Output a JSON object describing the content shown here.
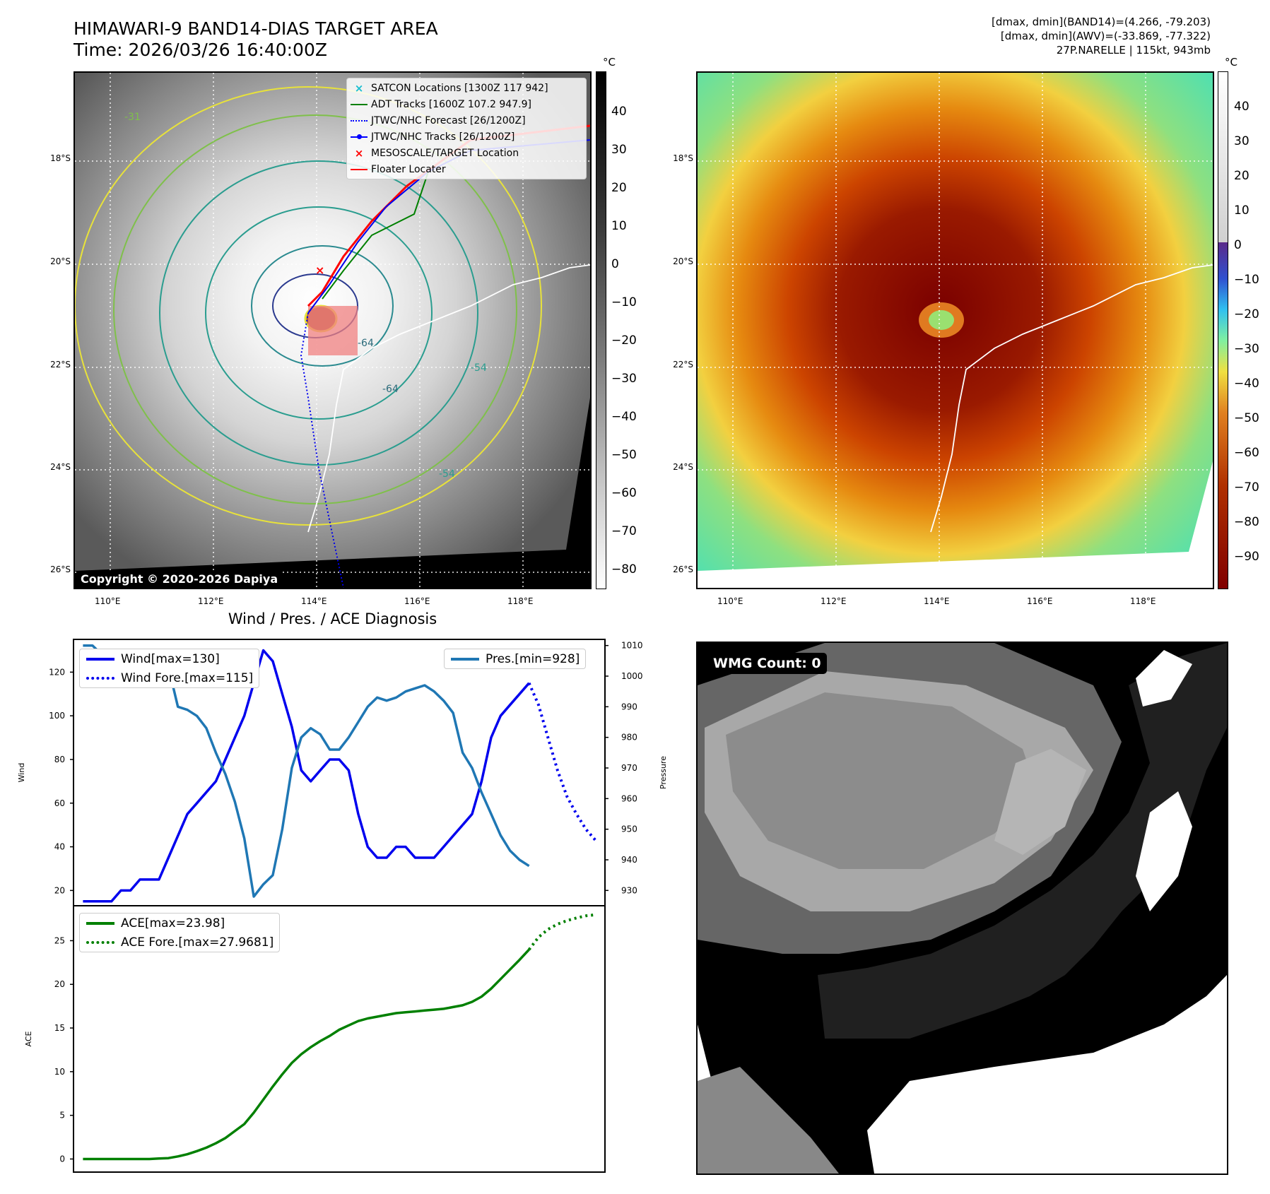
{
  "header": {
    "title_line1": "HIMAWARI-9 BAND14-DIAS TARGET AREA",
    "title_line2": "Time: 2026/03/26 16:40:00Z",
    "info_line1": "[dmax, dmin](BAND14)=(4.266, -79.203)",
    "info_line2": "[dmax, dmin](AWV)=(-33.869, -77.322)",
    "info_line3": "27P.NARELLE | 115kt, 943mb"
  },
  "map_axes": {
    "lat_labels": [
      "18°S",
      "20°S",
      "22°S",
      "24°S",
      "26°S"
    ],
    "lon_labels": [
      "110°E",
      "112°E",
      "114°E",
      "116°E",
      "118°E"
    ]
  },
  "left_map": {
    "copyright": "Copyright © 2020-2026 Dapiya",
    "contour_labels": [
      "-64",
      "-64",
      "-54",
      "-54",
      "-31"
    ],
    "legend": [
      {
        "label": "SATCON Locations [1300Z 117 942]",
        "symbol": "x-marker",
        "color": "#17becf"
      },
      {
        "label": "ADT Tracks [1600Z 107.2 947.9]",
        "symbol": "line",
        "color": "#008000"
      },
      {
        "label": "JTWC/NHC Forecast [26/1200Z]",
        "symbol": "dotted-line",
        "color": "#0000ff"
      },
      {
        "label": "JTWC/NHC Tracks [26/1200Z]",
        "symbol": "line-dot",
        "color": "#0000ff"
      },
      {
        "label": "MESOSCALE/TARGET Location",
        "symbol": "x-marker",
        "color": "#ff0000"
      },
      {
        "label": "Floater Locater",
        "symbol": "line",
        "color": "#ff0000"
      }
    ],
    "colorbar": {
      "unit": "°C",
      "ticks": [
        "40",
        "30",
        "20",
        "10",
        "0",
        "−10",
        "−20",
        "−30",
        "−40",
        "−50",
        "−60",
        "−70",
        "−80"
      ]
    }
  },
  "right_map": {
    "colorbar": {
      "unit": "°C",
      "ticks": [
        "40",
        "30",
        "20",
        "10",
        "0",
        "−10",
        "−20",
        "−30",
        "−40",
        "−50",
        "−60",
        "−70",
        "−80",
        "−90"
      ]
    }
  },
  "wmg_panel": {
    "label": "WMG Count: 0"
  },
  "chart_data": [
    {
      "type": "line",
      "title": "Wind / Pres. / ACE Diagnosis",
      "ylabel": "Wind",
      "y2label": "Pressure",
      "ylim": [
        13,
        135
      ],
      "y2lim": [
        925,
        1012
      ],
      "yticks": [
        "20",
        "40",
        "60",
        "80",
        "100",
        "120"
      ],
      "y2ticks": [
        "930",
        "940",
        "950",
        "960",
        "970",
        "980",
        "990",
        "1000",
        "1010"
      ],
      "legend_left": [
        "Wind[max=130]",
        "Wind Fore.[max=115]"
      ],
      "legend_right": [
        "Pres.[min=928]"
      ],
      "series": [
        {
          "name": "Wind[max=130]",
          "color": "#0000ee",
          "style": "solid",
          "axis": "left",
          "x": [
            0,
            1,
            2,
            3,
            4,
            5,
            6,
            7,
            8,
            9,
            10,
            11,
            12,
            13,
            14,
            15,
            16,
            17,
            18,
            19,
            20,
            21,
            22,
            23,
            24,
            25,
            26,
            27,
            28,
            29,
            30,
            31,
            32,
            33,
            34,
            35,
            36,
            37,
            38,
            39,
            40
          ],
          "values": [
            15,
            15,
            15,
            15,
            20,
            20,
            25,
            25,
            25,
            35,
            45,
            55,
            60,
            65,
            70,
            80,
            90,
            100,
            115,
            130,
            125,
            110,
            95,
            75,
            70,
            75,
            80,
            80,
            75,
            55,
            40,
            35,
            35,
            40,
            40,
            35,
            35,
            35,
            40,
            45,
            50
          ]
        },
        {
          "name": "",
          "color": "#0000ee",
          "style": "solid",
          "axis": "left",
          "x": [
            40,
            41,
            42,
            43,
            44,
            45,
            46,
            47
          ],
          "values": [
            50,
            55,
            70,
            90,
            100,
            105,
            110,
            115
          ]
        },
        {
          "name": "Wind Fore.[max=115]",
          "color": "#0000ee",
          "style": "dotted",
          "axis": "left",
          "x": [
            47,
            48,
            49,
            50,
            51,
            52,
            53,
            54
          ],
          "values": [
            115,
            105,
            90,
            75,
            63,
            55,
            48,
            43
          ]
        },
        {
          "name": "Pres.[min=928]",
          "color": "#1f77b4",
          "style": "solid",
          "axis": "right",
          "x": [
            0,
            1,
            2,
            3,
            4,
            5,
            6,
            7,
            8,
            9,
            10,
            11,
            12,
            13,
            14,
            15,
            16,
            17,
            18,
            19,
            20,
            21,
            22,
            23,
            24,
            25,
            26,
            27,
            28,
            29,
            30,
            31,
            32,
            33,
            34,
            35,
            36,
            37,
            38,
            39,
            40,
            41,
            42,
            43,
            44,
            45,
            46,
            47
          ],
          "values": [
            1010,
            1010,
            1007,
            1008,
            1007,
            1006,
            1005,
            1005,
            1004,
            1003,
            990,
            989,
            987,
            983,
            975,
            968,
            959,
            947,
            928,
            932,
            935,
            950,
            970,
            980,
            983,
            981,
            976,
            976,
            980,
            985,
            990,
            993,
            992,
            993,
            995,
            996,
            997,
            995,
            992,
            988,
            975,
            970,
            962,
            955,
            948,
            943,
            940,
            938
          ]
        }
      ]
    },
    {
      "type": "line",
      "ylabel": "ACE",
      "ylim": [
        -1.5,
        29
      ],
      "yticks": [
        "0",
        "5",
        "10",
        "15",
        "20",
        "25"
      ],
      "legend": [
        "ACE[max=23.98]",
        "ACE Fore.[max=27.9681]"
      ],
      "series": [
        {
          "name": "ACE[max=23.98]",
          "color": "#008000",
          "style": "solid",
          "x": [
            0,
            1,
            2,
            3,
            4,
            5,
            6,
            7,
            8,
            9,
            10,
            11,
            12,
            13,
            14,
            15,
            16,
            17,
            18,
            19,
            20,
            21,
            22,
            23,
            24,
            25,
            26,
            27,
            28,
            29,
            30,
            31,
            32,
            33,
            34,
            35,
            36,
            37,
            38,
            39,
            40,
            41,
            42,
            43,
            44,
            45,
            46,
            47
          ],
          "values": [
            0,
            0,
            0,
            0,
            0,
            0,
            0,
            0,
            0.05,
            0.1,
            0.3,
            0.55,
            0.9,
            1.3,
            1.8,
            2.4,
            3.2,
            4.0,
            5.3,
            6.8,
            8.3,
            9.7,
            11.0,
            12.0,
            12.8,
            13.5,
            14.1,
            14.8,
            15.3,
            15.8,
            16.1,
            16.3,
            16.5,
            16.7,
            16.8,
            16.9,
            17.0,
            17.1,
            17.2,
            17.4,
            17.6,
            18.0,
            18.6,
            19.5,
            20.6,
            21.7,
            22.8,
            23.98
          ]
        },
        {
          "name": "ACE Fore.[max=27.9681]",
          "color": "#008000",
          "style": "dotted",
          "x": [
            47,
            48,
            49,
            50,
            51,
            52,
            53,
            54
          ],
          "values": [
            23.98,
            25.4,
            26.3,
            26.9,
            27.3,
            27.6,
            27.85,
            27.9681
          ]
        }
      ]
    }
  ]
}
